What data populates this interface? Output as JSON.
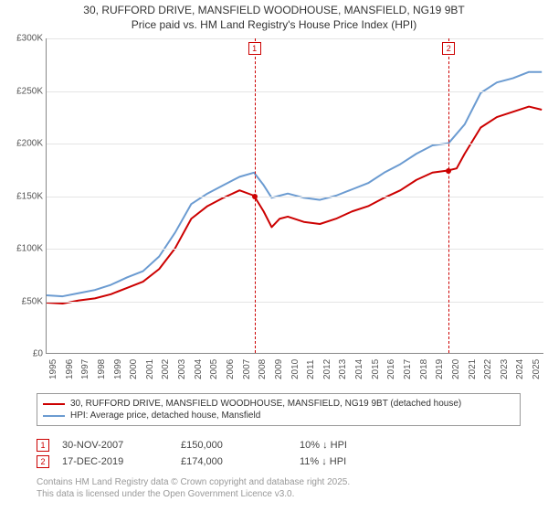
{
  "title_line1": "30, RUFFORD DRIVE, MANSFIELD WOODHOUSE, MANSFIELD, NG19 9BT",
  "title_line2": "Price paid vs. HM Land Registry's House Price Index (HPI)",
  "chart": {
    "type": "line",
    "x_start": 1995,
    "x_end": 2025.9,
    "ylim": [
      0,
      300000
    ],
    "ytick_step": 50000,
    "yticks": [
      {
        "v": 0,
        "label": "£0"
      },
      {
        "v": 50000,
        "label": "£50K"
      },
      {
        "v": 100000,
        "label": "£100K"
      },
      {
        "v": 150000,
        "label": "£150K"
      },
      {
        "v": 200000,
        "label": "£200K"
      },
      {
        "v": 250000,
        "label": "£250K"
      },
      {
        "v": 300000,
        "label": "£300K"
      }
    ],
    "xticks": [
      1995,
      1996,
      1997,
      1998,
      1999,
      2000,
      2001,
      2002,
      2003,
      2004,
      2005,
      2006,
      2007,
      2008,
      2009,
      2010,
      2011,
      2012,
      2013,
      2014,
      2015,
      2016,
      2017,
      2018,
      2019,
      2020,
      2021,
      2022,
      2023,
      2024,
      2025
    ],
    "background_color": "#ffffff",
    "grid_color": "#e5e5e5",
    "series": [
      {
        "name": "30, RUFFORD DRIVE, MANSFIELD WOODHOUSE, MANSFIELD, NG19 9BT (detached house)",
        "color": "#cc0000",
        "width": 2,
        "points": [
          [
            1995,
            48000
          ],
          [
            1996,
            47000
          ],
          [
            1997,
            50000
          ],
          [
            1998,
            52000
          ],
          [
            1999,
            56000
          ],
          [
            2000,
            62000
          ],
          [
            2001,
            68000
          ],
          [
            2002,
            80000
          ],
          [
            2003,
            100000
          ],
          [
            2004,
            128000
          ],
          [
            2005,
            140000
          ],
          [
            2006,
            148000
          ],
          [
            2007,
            155000
          ],
          [
            2007.9,
            150000
          ],
          [
            2008.5,
            135000
          ],
          [
            2009,
            120000
          ],
          [
            2009.5,
            128000
          ],
          [
            2010,
            130000
          ],
          [
            2011,
            125000
          ],
          [
            2012,
            123000
          ],
          [
            2013,
            128000
          ],
          [
            2014,
            135000
          ],
          [
            2015,
            140000
          ],
          [
            2016,
            148000
          ],
          [
            2017,
            155000
          ],
          [
            2018,
            165000
          ],
          [
            2019,
            172000
          ],
          [
            2019.96,
            174000
          ],
          [
            2020.5,
            176000
          ],
          [
            2021,
            190000
          ],
          [
            2022,
            215000
          ],
          [
            2023,
            225000
          ],
          [
            2024,
            230000
          ],
          [
            2025,
            235000
          ],
          [
            2025.8,
            232000
          ]
        ]
      },
      {
        "name": "HPI: Average price, detached house, Mansfield",
        "color": "#6b9bd1",
        "width": 2,
        "points": [
          [
            1995,
            55000
          ],
          [
            1996,
            54000
          ],
          [
            1997,
            57000
          ],
          [
            1998,
            60000
          ],
          [
            1999,
            65000
          ],
          [
            2000,
            72000
          ],
          [
            2001,
            78000
          ],
          [
            2002,
            92000
          ],
          [
            2003,
            115000
          ],
          [
            2004,
            142000
          ],
          [
            2005,
            152000
          ],
          [
            2006,
            160000
          ],
          [
            2007,
            168000
          ],
          [
            2007.9,
            172000
          ],
          [
            2008.5,
            160000
          ],
          [
            2009,
            148000
          ],
          [
            2009.5,
            150000
          ],
          [
            2010,
            152000
          ],
          [
            2011,
            148000
          ],
          [
            2012,
            146000
          ],
          [
            2013,
            150000
          ],
          [
            2014,
            156000
          ],
          [
            2015,
            162000
          ],
          [
            2016,
            172000
          ],
          [
            2017,
            180000
          ],
          [
            2018,
            190000
          ],
          [
            2019,
            198000
          ],
          [
            2020,
            200000
          ],
          [
            2021,
            218000
          ],
          [
            2022,
            248000
          ],
          [
            2023,
            258000
          ],
          [
            2024,
            262000
          ],
          [
            2025,
            268000
          ],
          [
            2025.8,
            268000
          ]
        ]
      }
    ],
    "markers": [
      {
        "id": "1",
        "x": 2007.91,
        "y": 150000,
        "box_y": 18000
      },
      {
        "id": "2",
        "x": 2019.96,
        "y": 174000,
        "box_y": 18000
      }
    ]
  },
  "legend": {
    "items": [
      {
        "color": "#cc0000",
        "label": "30, RUFFORD DRIVE, MANSFIELD WOODHOUSE, MANSFIELD, NG19 9BT (detached house)"
      },
      {
        "color": "#6b9bd1",
        "label": "HPI: Average price, detached house, Mansfield"
      }
    ]
  },
  "annotations": [
    {
      "id": "1",
      "date": "30-NOV-2007",
      "price": "£150,000",
      "pct": "10% ↓ HPI"
    },
    {
      "id": "2",
      "date": "17-DEC-2019",
      "price": "£174,000",
      "pct": "11% ↓ HPI"
    }
  ],
  "footnote_line1": "Contains HM Land Registry data © Crown copyright and database right 2025.",
  "footnote_line2": "This data is licensed under the Open Government Licence v3.0."
}
